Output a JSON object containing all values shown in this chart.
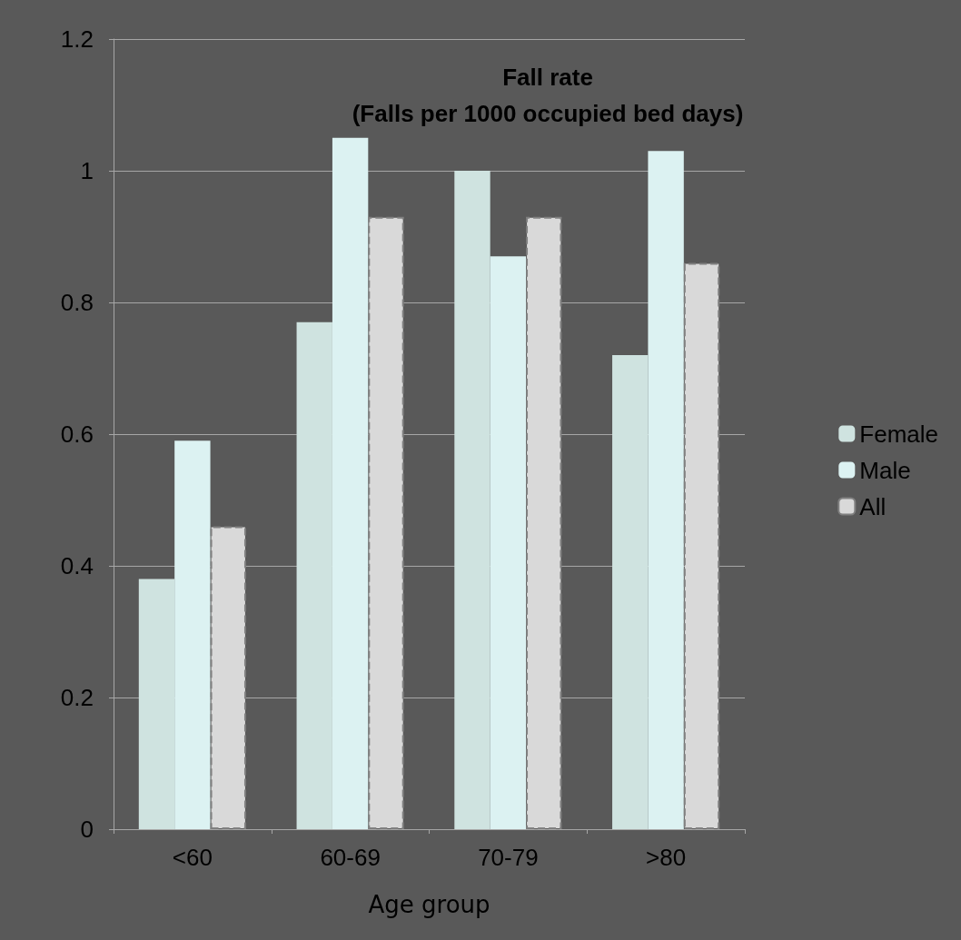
{
  "chart_data": {
    "type": "bar",
    "title": "Fall rate\n(Falls per 1000 occupied bed days)",
    "xlabel": "Age group",
    "categories": [
      "<60",
      "60-69",
      "70-79",
      ">80"
    ],
    "series": [
      {
        "name": "Female",
        "color": "#cfe3e0",
        "values": [
          0.38,
          0.77,
          1.0,
          0.72
        ]
      },
      {
        "name": "Male",
        "color": "#dcf2f2",
        "values": [
          0.59,
          1.05,
          0.87,
          1.03
        ]
      },
      {
        "name": "All",
        "color": "#d9d9d9",
        "values": [
          0.46,
          0.93,
          0.93,
          0.86
        ]
      }
    ],
    "ylim": [
      0,
      1.2
    ],
    "yticks": [
      0,
      0.2,
      0.4,
      0.6,
      0.8,
      1,
      1.2
    ],
    "grid": "y",
    "legend": "right"
  }
}
